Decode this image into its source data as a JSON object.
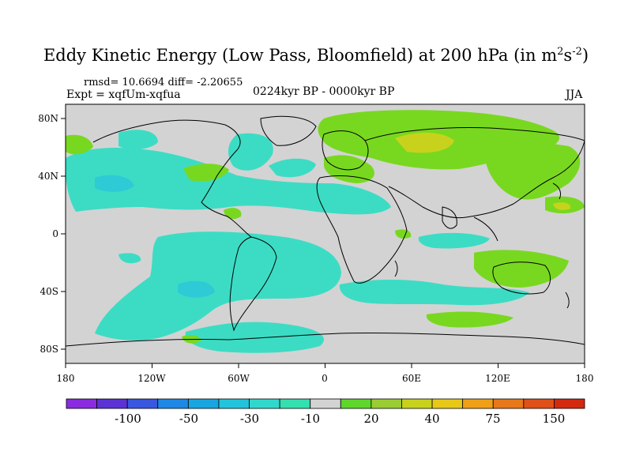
{
  "title": {
    "text": "Eddy Kinetic Energy (Low Pass, Bloomfield) at 200 hPa (in m",
    "unit_sup1": "2",
    "unit_s": "s",
    "unit_sup2": "-2",
    "close": ")"
  },
  "stats_line": "rmsd= 10.6694 diff= -2.20655",
  "expt_line": "Expt = xqfUm-xqfua",
  "period": "0224kyr BP - 0000kyr BP",
  "season": "JJA",
  "axes": {
    "x_ticks": [
      "180",
      "120W",
      "60W",
      "0",
      "60E",
      "120E",
      "180"
    ],
    "y_ticks": [
      "80N",
      "40N",
      "0",
      "40S",
      "80S"
    ]
  },
  "colorbar": {
    "labels": [
      "-100",
      "-50",
      "-30",
      "-10",
      "20",
      "40",
      "75",
      "150"
    ],
    "colors": [
      "#8a2be2",
      "#5b32d6",
      "#3a57e0",
      "#1e88e6",
      "#19a6e0",
      "#22c4dc",
      "#30d8cc",
      "#33e0b0",
      "#d3d3d3",
      "#5ed62a",
      "#9acd32",
      "#c8d21c",
      "#e8c816",
      "#f0a016",
      "#e87818",
      "#e05018",
      "#d42810"
    ]
  },
  "colors": {
    "background_neutral": "#d3d3d3",
    "negative_fill": "#3cdcc4",
    "negative_strong": "#2ecad6",
    "positive_fill": "#78d820",
    "positive_strong": "#c8d21c",
    "coast": "#000000"
  }
}
